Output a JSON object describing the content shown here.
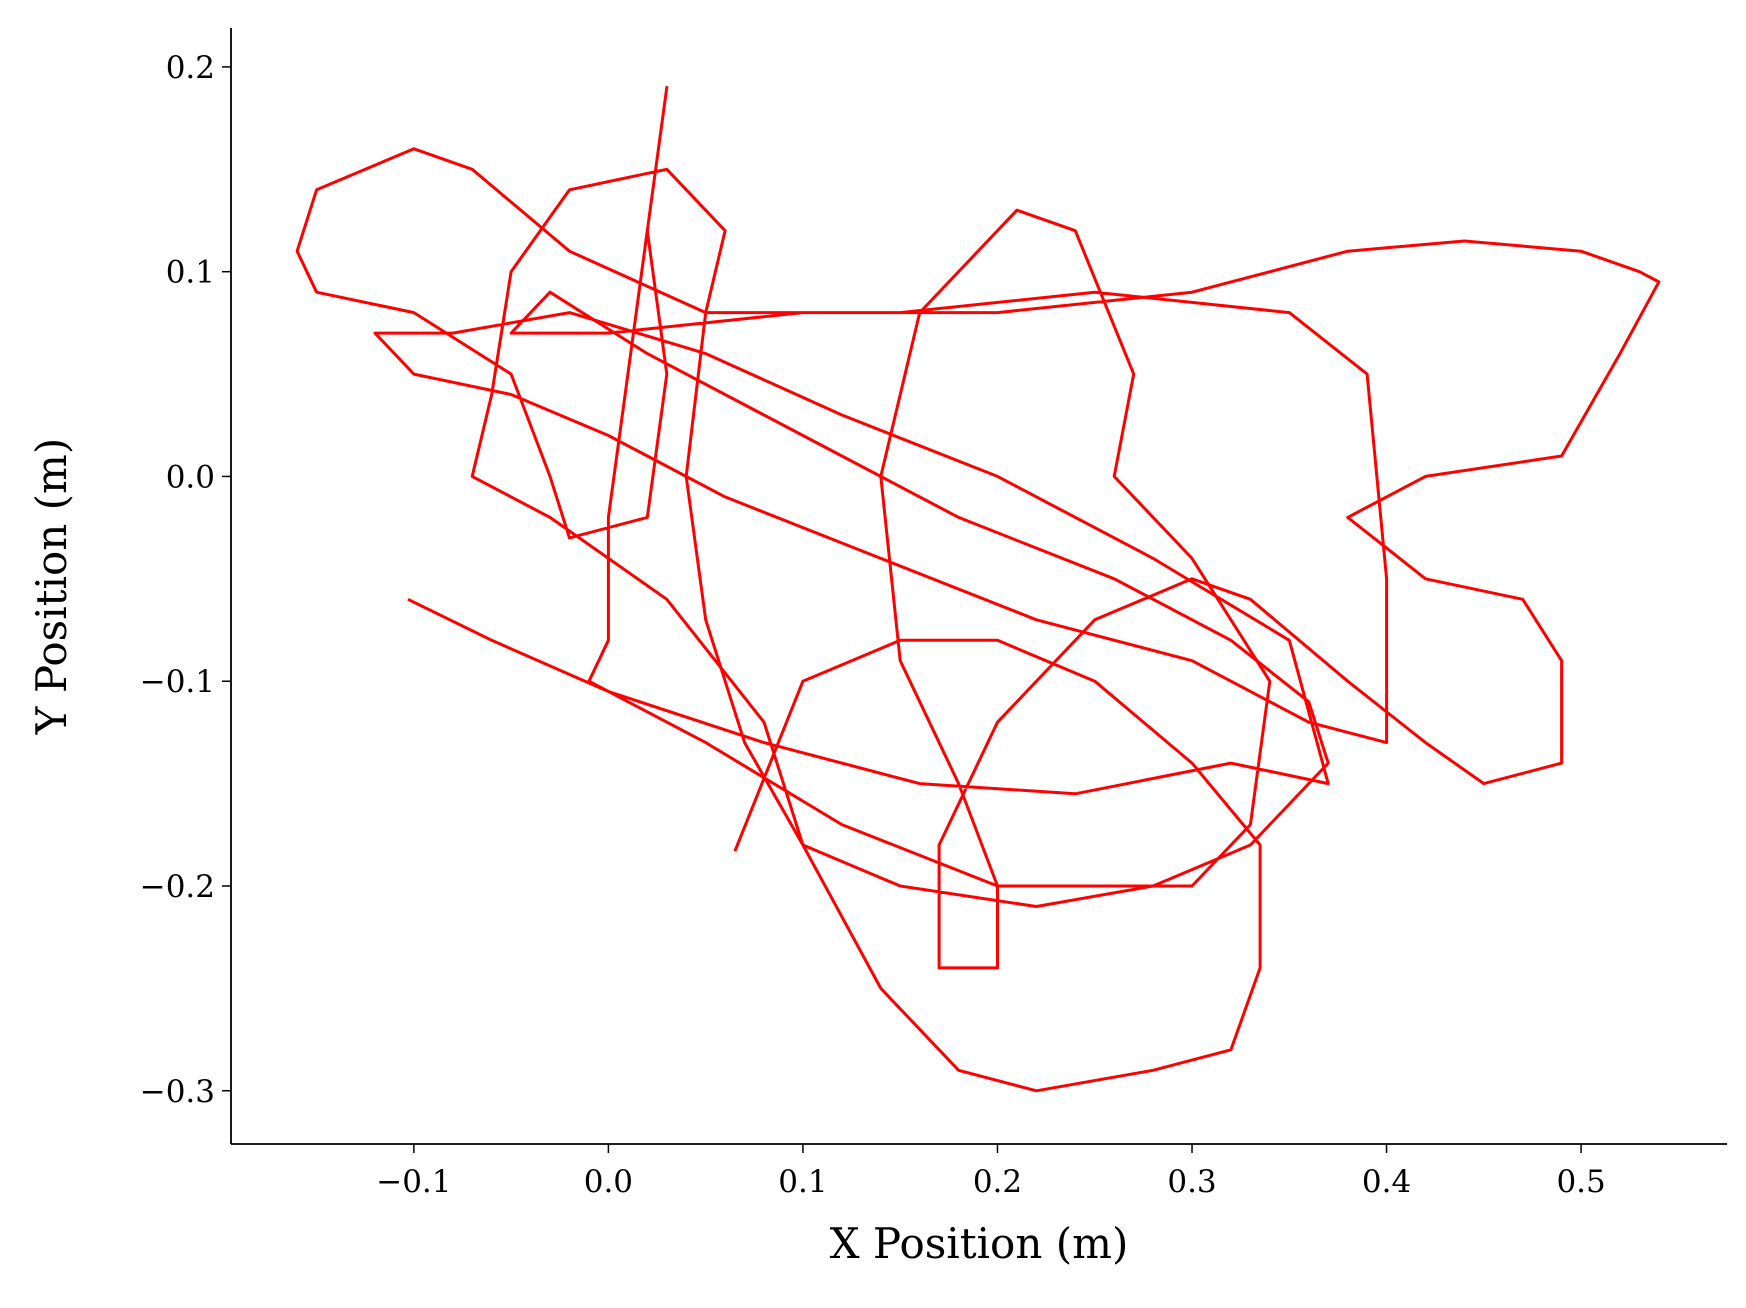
{
  "chart_data": {
    "type": "line",
    "x_label": "X Position (m)",
    "y_label": "Y Position (m)",
    "color": "#ff0000",
    "xlim": [
      -0.194,
      0.575
    ],
    "ylim": [
      -0.326,
      0.219
    ],
    "xticks": [
      {
        "value": -0.1,
        "label": "−0.1"
      },
      {
        "value": 0,
        "label": "0.0"
      },
      0.1,
      0.2,
      0.3,
      0.4,
      0.5
    ],
    "yticks": [
      {
        "value": -0.3,
        "label": "−0.3"
      },
      {
        "value": -0.2,
        "label": "−0.2"
      },
      {
        "value": -0.1,
        "label": "−0.1"
      },
      {
        "value": 0,
        "label": "0.0"
      },
      0.1,
      0.2
    ],
    "x": [
      -0.103,
      -0.06,
      0.0,
      0.08,
      0.16,
      0.24,
      0.32,
      0.37,
      0.35,
      0.28,
      0.2,
      0.12,
      0.05,
      -0.02,
      -0.08,
      -0.12,
      -0.1,
      -0.05,
      0.0,
      0.06,
      0.14,
      0.22,
      0.3,
      0.36,
      0.4,
      0.4,
      0.39,
      0.35,
      0.25,
      0.15,
      0.05,
      -0.02,
      -0.07,
      -0.1,
      -0.15,
      -0.16,
      -0.15,
      -0.1,
      -0.05,
      -0.03,
      -0.02,
      0.02,
      0.03,
      0.02,
      0.03,
      0.02,
      0.01,
      0.0,
      0.0,
      -0.01,
      0.05,
      0.12,
      0.2,
      0.3,
      0.33,
      0.34,
      0.3,
      0.26,
      0.27,
      0.24,
      0.21,
      0.16,
      0.14,
      0.15,
      0.18,
      0.2,
      0.2,
      0.17,
      0.17,
      0.2,
      0.25,
      0.3,
      0.33,
      0.38,
      0.42,
      0.45,
      0.49,
      0.49,
      0.47,
      0.42,
      0.38,
      0.42,
      0.49,
      0.52,
      0.54,
      0.53,
      0.5,
      0.44,
      0.38,
      0.3,
      0.2,
      0.1,
      0.0,
      -0.05,
      -0.03,
      0.02,
      0.1,
      0.18,
      0.26,
      0.32,
      0.36,
      0.37,
      0.33,
      0.28,
      0.22,
      0.15,
      0.1,
      0.07,
      0.05,
      0.04,
      0.05,
      0.06,
      0.03,
      -0.02,
      -0.05,
      -0.06,
      -0.07,
      -0.03,
      0.03,
      0.08,
      0.1,
      0.14,
      0.18,
      0.22,
      0.28,
      0.32,
      0.335,
      0.335,
      0.3,
      0.25,
      0.2,
      0.15,
      0.1,
      0.065
    ],
    "values": [
      -0.06,
      -0.08,
      -0.105,
      -0.13,
      -0.15,
      -0.155,
      -0.14,
      -0.15,
      -0.08,
      -0.04,
      0.0,
      0.03,
      0.06,
      0.08,
      0.07,
      0.07,
      0.05,
      0.04,
      0.02,
      -0.01,
      -0.04,
      -0.07,
      -0.09,
      -0.12,
      -0.13,
      -0.05,
      0.05,
      0.08,
      0.09,
      0.08,
      0.08,
      0.11,
      0.15,
      0.16,
      0.14,
      0.11,
      0.09,
      0.08,
      0.05,
      0.0,
      -0.03,
      -0.02,
      0.05,
      0.12,
      0.19,
      0.12,
      0.05,
      -0.02,
      -0.08,
      -0.1,
      -0.13,
      -0.17,
      -0.2,
      -0.2,
      -0.17,
      -0.1,
      -0.04,
      0.0,
      0.05,
      0.12,
      0.13,
      0.08,
      0.0,
      -0.09,
      -0.15,
      -0.2,
      -0.24,
      -0.24,
      -0.18,
      -0.12,
      -0.07,
      -0.05,
      -0.06,
      -0.1,
      -0.13,
      -0.15,
      -0.14,
      -0.09,
      -0.06,
      -0.05,
      -0.02,
      0.0,
      0.01,
      0.06,
      0.095,
      0.1,
      0.11,
      0.115,
      0.11,
      0.09,
      0.08,
      0.08,
      0.07,
      0.07,
      0.09,
      0.06,
      0.02,
      -0.02,
      -0.05,
      -0.08,
      -0.11,
      -0.14,
      -0.18,
      -0.2,
      -0.21,
      -0.2,
      -0.18,
      -0.13,
      -0.07,
      0.0,
      0.08,
      0.12,
      0.15,
      0.14,
      0.1,
      0.04,
      0.0,
      -0.02,
      -0.06,
      -0.12,
      -0.18,
      -0.25,
      -0.29,
      -0.3,
      -0.29,
      -0.28,
      -0.24,
      -0.18,
      -0.14,
      -0.1,
      -0.08,
      -0.08,
      -0.1,
      -0.183
    ]
  }
}
